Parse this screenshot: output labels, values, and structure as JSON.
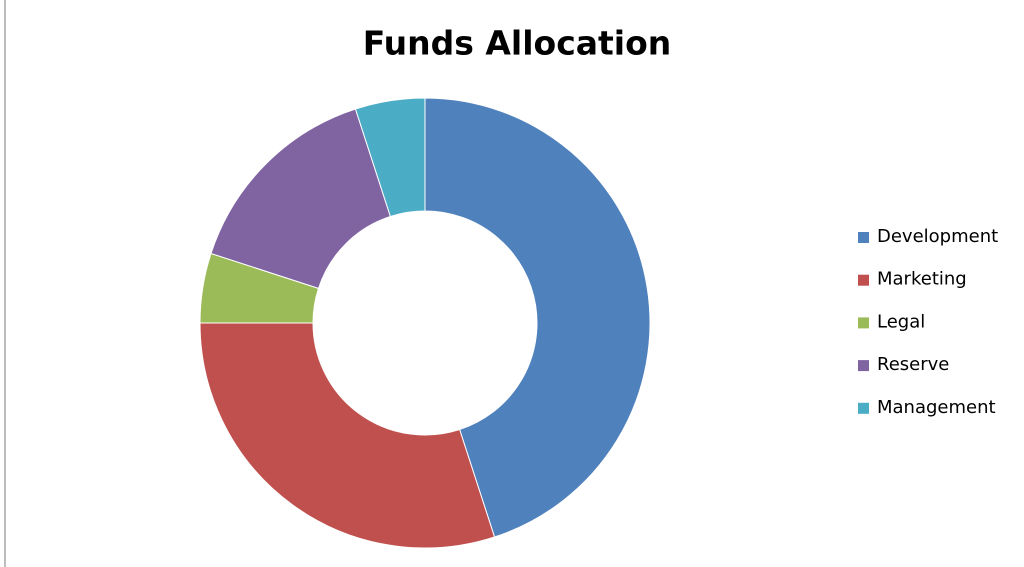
{
  "chart_data": {
    "type": "donut",
    "title": "Funds Allocation",
    "categories": [
      "Development",
      "Marketing",
      "Legal",
      "Reserve",
      "Management"
    ],
    "values": [
      45,
      30,
      5,
      15,
      5
    ],
    "colors": [
      "#4f81bd",
      "#c0504d",
      "#9bbb59",
      "#8064a2",
      "#4bacc6"
    ],
    "legend": "right"
  }
}
